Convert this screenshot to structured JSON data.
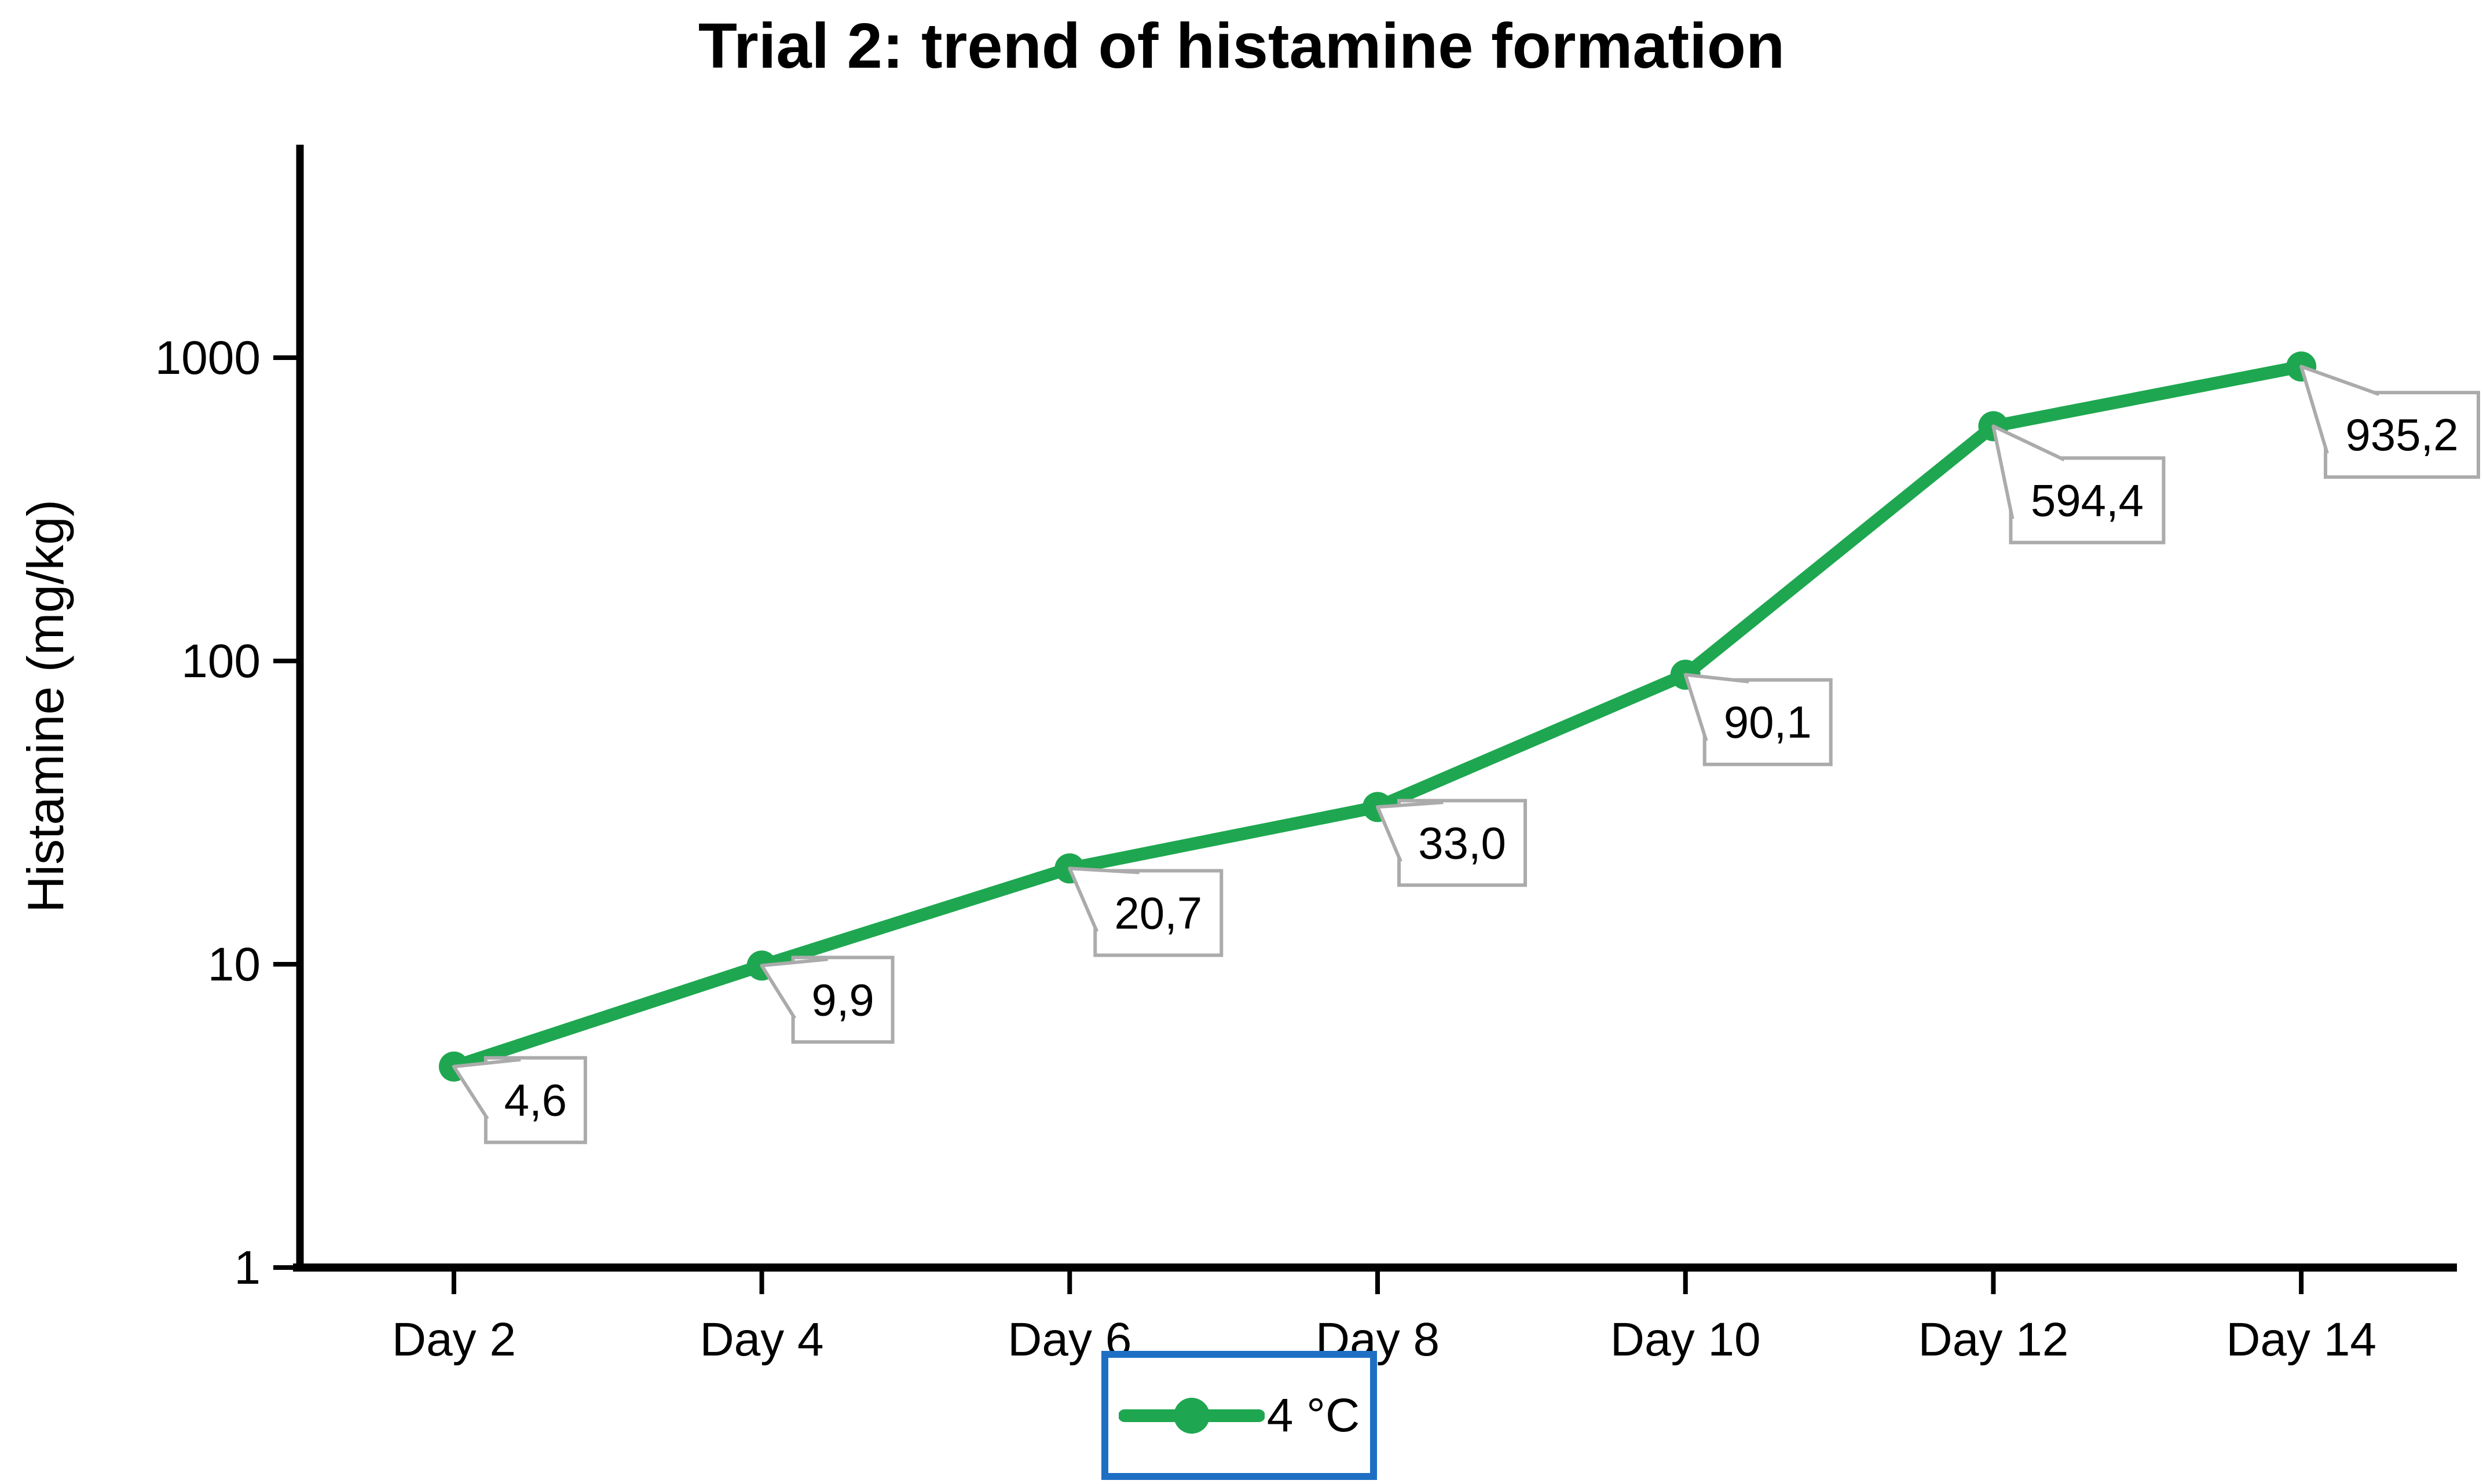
{
  "chart_data": {
    "type": "line",
    "title": "Trial 2: trend of histamine formation",
    "ylabel": "Histamine (mg/kg)",
    "xlabel": "",
    "y_scale": "log",
    "ylim": [
      1,
      5000
    ],
    "y_ticks": [
      "1",
      "10",
      "100",
      "1000"
    ],
    "categories": [
      "Day 2",
      "Day 4",
      "Day 6",
      "Day 8",
      "Day 10",
      "Day 12",
      "Day 14"
    ],
    "series": [
      {
        "name": "4 °C",
        "values": [
          4.6,
          9.9,
          20.7,
          33.0,
          90.1,
          594.4,
          935.2
        ],
        "point_labels": [
          "4,6",
          "9,9",
          "20,7",
          "33,0",
          "90,1",
          "594,4",
          "935,2"
        ],
        "color": "#1EA750",
        "marker": "circle"
      }
    ],
    "legend_position": "bottom-center",
    "grid": false,
    "data_label_style": "white-callout-box"
  },
  "colors": {
    "series_line": "#1EA750",
    "legend_border": "#1E6FC4",
    "callout_border": "#ABABAB",
    "axis": "#000000",
    "background": "#FFFFFF",
    "text": "#000000"
  }
}
